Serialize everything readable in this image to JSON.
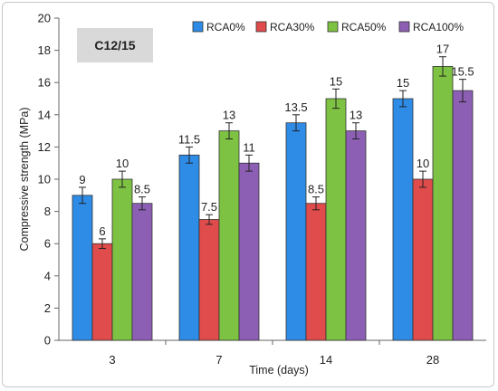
{
  "chart_data": {
    "type": "bar",
    "annotation": "C12/15",
    "xlabel": "Time (days)",
    "ylabel": "Compressive strength (MPa)",
    "categories": [
      "3",
      "7",
      "14",
      "28"
    ],
    "ylim": [
      0,
      20
    ],
    "yticks": [
      0,
      2,
      4,
      6,
      8,
      10,
      12,
      14,
      16,
      18,
      20
    ],
    "grid": false,
    "legend_position": "top",
    "series": [
      {
        "name": "RCA0%",
        "color": "#2E8BE6",
        "values": [
          9,
          11.5,
          13.5,
          15
        ],
        "labels": [
          "9",
          "11.5",
          "13.5",
          "15"
        ],
        "errors": [
          0.5,
          0.5,
          0.5,
          0.5
        ]
      },
      {
        "name": "RCA30%",
        "color": "#E04B4B",
        "values": [
          6,
          7.5,
          8.5,
          10
        ],
        "labels": [
          "6",
          "7.5",
          "8.5",
          "10"
        ],
        "errors": [
          0.3,
          0.3,
          0.4,
          0.5
        ]
      },
      {
        "name": "RCA50%",
        "color": "#7DC242",
        "values": [
          10,
          13,
          15,
          17
        ],
        "labels": [
          "10",
          "13",
          "15",
          "17"
        ],
        "errors": [
          0.5,
          0.5,
          0.6,
          0.6
        ]
      },
      {
        "name": "RCA100%",
        "color": "#8C5FB5",
        "values": [
          8.5,
          11,
          13,
          15.5
        ],
        "labels": [
          "8.5",
          "11",
          "13",
          "15.5"
        ],
        "errors": [
          0.4,
          0.5,
          0.5,
          0.7
        ]
      }
    ]
  }
}
